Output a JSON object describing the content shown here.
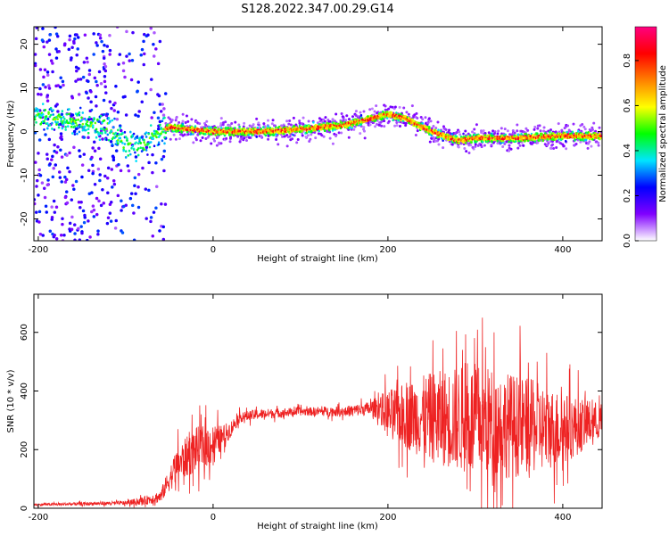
{
  "chart_data": [
    {
      "type": "heatmap",
      "title": "S128.2022.347.00.29.G14",
      "xlabel": "Height of straight line (km)",
      "ylabel": "Frequency (Hz)",
      "xlim": [
        -205,
        445
      ],
      "ylim": [
        -25,
        24
      ],
      "xticks": [
        -200,
        0,
        200,
        400
      ],
      "yticks": [
        -20,
        -10,
        0,
        10,
        20
      ],
      "grid": false,
      "colorbar": {
        "label": "Normalized spectral amplitude",
        "range": [
          0,
          0.95
        ],
        "ticks": [
          0.0,
          0.2,
          0.4,
          0.6,
          0.8
        ],
        "colormap": [
          "#ffffff",
          "#8000ff",
          "#0000ff",
          "#00e5ff",
          "#00ff00",
          "#ffff00",
          "#ff8000",
          "#ff0000",
          "#ff0080"
        ]
      },
      "ridge_center_hz": {
        "x": [
          -205,
          -150,
          -120,
          -100,
          -80,
          -60,
          -50,
          0,
          50,
          100,
          150,
          180,
          200,
          220,
          250,
          280,
          300,
          350,
          400,
          445
        ],
        "y": [
          4,
          2,
          1,
          -3,
          -3,
          0,
          1,
          0,
          0,
          0.5,
          1.5,
          3,
          4,
          3,
          0,
          -2,
          -1.5,
          -1.5,
          -1,
          -1
        ]
      }
    },
    {
      "type": "line",
      "xlabel": "Height of straight line (km)",
      "ylabel": "SNR (10 * v/v)",
      "xlim": [
        -205,
        445
      ],
      "ylim": [
        0,
        730
      ],
      "xticks": [
        -200,
        0,
        200,
        400
      ],
      "yticks": [
        0,
        200,
        400,
        600
      ],
      "grid": false,
      "series_color": "#ee2222",
      "envelope": {
        "x": [
          -205,
          -100,
          -80,
          -60,
          -50,
          -40,
          -20,
          0,
          10,
          20,
          30,
          50,
          100,
          150,
          180,
          190,
          200,
          250,
          300,
          350,
          400,
          445
        ],
        "mean": [
          12,
          18,
          25,
          40,
          100,
          150,
          200,
          220,
          240,
          270,
          310,
          320,
          330,
          330,
          340,
          345,
          320,
          310,
          300,
          280,
          270,
          300
        ],
        "spread": [
          6,
          10,
          20,
          30,
          60,
          90,
          110,
          100,
          60,
          40,
          25,
          25,
          20,
          25,
          35,
          60,
          120,
          220,
          280,
          250,
          180,
          80
        ]
      }
    }
  ]
}
